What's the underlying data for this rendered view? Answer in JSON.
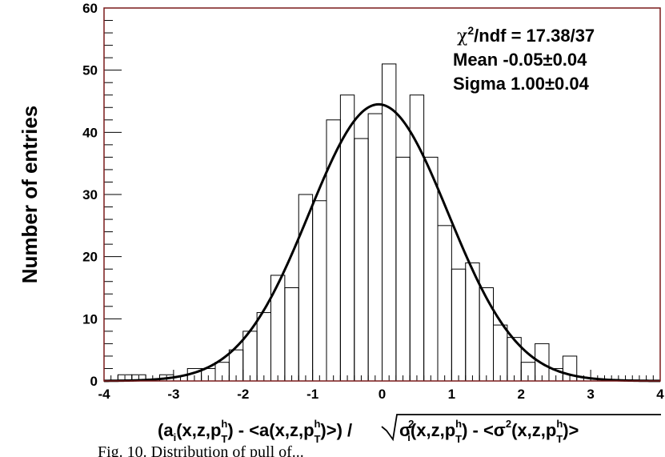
{
  "chart_data": {
    "type": "bar",
    "ylabel": "Number of entries",
    "xlabel": "(a_i(x,z,p_T^h) - <a(x,z,p_T^h)>) / sqrt(σ_i²(x,z,p_T^h) - <σ²(x,z,p_T^h)>)",
    "xlim": [
      -4,
      4
    ],
    "ylim": [
      0,
      60
    ],
    "x_ticks": [
      "-4",
      "-3",
      "-2",
      "-1",
      "0",
      "1",
      "2",
      "3",
      "4"
    ],
    "y_ticks": [
      "0",
      "10",
      "20",
      "30",
      "40",
      "50",
      "60"
    ],
    "bin_edges": [
      -3.8,
      -3.6,
      -3.4,
      -3.2,
      -3.0,
      -2.8,
      -2.6,
      -2.4,
      -2.2,
      -2.0,
      -1.8,
      -1.6,
      -1.4,
      -1.2,
      -1.0,
      -0.8,
      -0.6,
      -0.4,
      -0.2,
      0.0,
      0.2,
      0.4,
      0.6,
      0.8,
      1.0,
      1.2,
      1.4,
      1.6,
      1.8,
      2.0,
      2.2,
      2.4,
      2.6,
      2.8
    ],
    "bin_values": [
      1,
      1,
      0,
      1,
      0,
      2,
      2,
      3,
      5,
      8,
      11,
      17,
      15,
      30,
      29,
      42,
      46,
      39,
      43,
      51,
      36,
      46,
      36,
      25,
      18,
      19,
      15,
      9,
      7,
      3,
      6,
      2,
      4
    ],
    "fit": {
      "function": "gaussian",
      "amplitude": 44.5,
      "mean": -0.05,
      "sigma": 1.0
    },
    "stats": {
      "chi2_ndf": "17.38/37",
      "mean": "Mean -0.05±0.04",
      "sigma": "Sigma 1.00±0.04"
    }
  },
  "caption_text": "Fig. 10. Distribution of pull of...",
  "colors": {
    "frame": "#7a1a1a",
    "histogram": "#000000",
    "fit": "#000000"
  }
}
